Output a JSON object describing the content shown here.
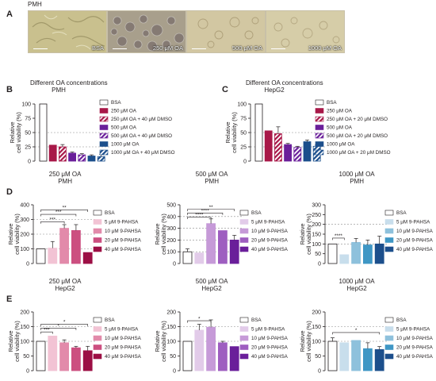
{
  "panels": {
    "A": {
      "letter": "A",
      "cell_type": "PMH",
      "images": [
        {
          "label": "BSA",
          "tone": "#c9c08e"
        },
        {
          "label": "250 μM OA",
          "tone": "#a89f8c"
        },
        {
          "label": "500 μM OA",
          "tone": "#d2c7a2"
        },
        {
          "label": "1000 μM OA",
          "tone": "#d6cda8"
        }
      ]
    }
  },
  "chart_data": [
    {
      "id": "B",
      "letter": "B",
      "type": "bar",
      "title": "Different OA concentrations",
      "subtitle": "PMH",
      "ylabel": "Relative\ncell viability (%)",
      "ylim": [
        0,
        100
      ],
      "yticks": [
        0,
        25,
        50,
        75,
        100
      ],
      "ref_lines": [
        25,
        50
      ],
      "categories": [
        "BSA",
        "250 μM OA",
        "250 μM OA + 40 μM DMSO",
        "500 μM OA",
        "500 μM OA + 40 μM DMSO",
        "1000 μM OA",
        "1000 μM OA + 40 μM DMSO"
      ],
      "values": [
        100,
        28,
        25,
        14,
        11,
        9,
        8
      ],
      "errors": [
        0,
        0,
        4,
        2,
        2,
        2,
        4
      ],
      "colors": [
        "#ffffff",
        "#a81848",
        "#a81848",
        "#6a1f9a",
        "#6a1f9a",
        "#1c4f8c",
        "#1c4f8c"
      ],
      "hatched": [
        false,
        false,
        true,
        false,
        true,
        false,
        true
      ],
      "brackets": []
    },
    {
      "id": "C",
      "letter": "C",
      "type": "bar",
      "title": "Different OA concentrations",
      "subtitle": "HepG2",
      "ylabel": "Relative\ncell viability (%)",
      "ylim": [
        0,
        100
      ],
      "yticks": [
        0,
        25,
        50,
        75,
        100
      ],
      "ref_lines": [
        25,
        50
      ],
      "categories": [
        "BSA",
        "250 μM OA",
        "250 μM OA + 20 μM DMSO",
        "500 μM OA",
        "500 μM OA + 20 μM DMSO",
        "1000 μM OA",
        "1000 μM OA + 20 μM DMSO"
      ],
      "values": [
        100,
        53,
        48,
        29,
        24,
        34,
        26
      ],
      "errors": [
        0,
        0,
        12,
        2,
        2,
        3,
        2
      ],
      "colors": [
        "#ffffff",
        "#a81848",
        "#a81848",
        "#6a1f9a",
        "#6a1f9a",
        "#1c4f8c",
        "#1c4f8c"
      ],
      "hatched": [
        false,
        false,
        true,
        false,
        true,
        false,
        true
      ],
      "brackets": []
    },
    {
      "id": "D1",
      "letter": "D",
      "type": "bar",
      "title": "250 μM OA",
      "subtitle": "PMH",
      "ylabel": "Relative\ncell viability (%)",
      "ylim": [
        0,
        400
      ],
      "yticks": [
        0,
        100,
        200,
        300,
        400
      ],
      "ref_lines": [
        100,
        200,
        300
      ],
      "categories": [
        "BSA",
        "5 μM 9-PAHSA",
        "10 μM 9-PAHSA",
        "20 μM 9-PAHSA",
        "40 μM 9-PAHSA"
      ],
      "values": [
        100,
        105,
        240,
        225,
        75
      ],
      "errors": [
        0,
        45,
        25,
        40,
        0
      ],
      "colors": [
        "#ffffff",
        "#f2c3d4",
        "#e28aaa",
        "#cc4f80",
        "#9c0f45"
      ],
      "hatched": [
        false,
        false,
        false,
        false,
        false
      ],
      "brackets": [
        {
          "from": 0,
          "to": 2,
          "y": 285,
          "label": "***"
        },
        {
          "from": 0,
          "to": 3,
          "y": 335,
          "label": "***"
        },
        {
          "from": 0,
          "to": 4,
          "y": 365,
          "label": "**"
        }
      ]
    },
    {
      "id": "D2",
      "type": "bar",
      "title": "500 μM OA",
      "subtitle": "PMH",
      "ylabel": "Relative\ncell viability (%)",
      "ylim": [
        0,
        500
      ],
      "yticks": [
        0,
        100,
        200,
        300,
        400,
        500
      ],
      "ref_lines": [
        100,
        200,
        300,
        400
      ],
      "categories": [
        "BSA",
        "5 μM 9-PAHSA",
        "10 μM 9-PAHSA",
        "20 μM 9-PAHSA",
        "40 μM 9-PAHSA"
      ],
      "values": [
        100,
        90,
        340,
        280,
        200
      ],
      "errors": [
        25,
        0,
        40,
        0,
        40
      ],
      "colors": [
        "#ffffff",
        "#e2cbe9",
        "#c69ad8",
        "#9e5ec0",
        "#6a1f9a"
      ],
      "hatched": [
        false,
        false,
        false,
        false,
        false
      ],
      "brackets": [
        {
          "from": 0,
          "to": 2,
          "y": 395,
          "label": "****"
        },
        {
          "from": 0,
          "to": 3,
          "y": 430,
          "label": "****"
        },
        {
          "from": 0,
          "to": 4,
          "y": 462,
          "label": "**"
        }
      ]
    },
    {
      "id": "D3",
      "type": "bar",
      "title": "1000 μM OA",
      "subtitle": "PMH",
      "ylabel": "Relative\ncell viability (%)",
      "ylim": [
        0,
        300
      ],
      "yticks": [
        0,
        50,
        100,
        150,
        200,
        250,
        300
      ],
      "ref_lines": [
        100,
        200
      ],
      "categories": [
        "BSA",
        "5 μM 9-PAHSA",
        "10 μM 9-PAHSA",
        "20 μM 9-PAHSA",
        "40 μM 9-PAHSA"
      ],
      "values": [
        100,
        45,
        108,
        95,
        100
      ],
      "errors": [
        0,
        0,
        20,
        25,
        40
      ],
      "colors": [
        "#ffffff",
        "#c8deec",
        "#8ec1dc",
        "#3f97c5",
        "#1c4f8c"
      ],
      "hatched": [
        false,
        false,
        false,
        false,
        false
      ],
      "brackets": [
        {
          "from": 0,
          "to": 1,
          "y": 130,
          "label": "****"
        }
      ]
    },
    {
      "id": "E1",
      "letter": "E",
      "type": "bar",
      "title": "250 μM OA",
      "subtitle": "HepG2",
      "ylabel": "Relative\ncell viability (%)",
      "ylim": [
        0,
        200
      ],
      "yticks": [
        0,
        50,
        100,
        150,
        200
      ],
      "ref_lines": [
        100,
        150
      ],
      "categories": [
        "BSA",
        "5 μM 9-PAHSA",
        "10 μM 9-PAHSA",
        "20 μM 9-PAHSA",
        "40 μM 9-PAHSA"
      ],
      "values": [
        100,
        118,
        95,
        78,
        68
      ],
      "errors": [
        0,
        0,
        10,
        5,
        15
      ],
      "colors": [
        "#ffffff",
        "#f2c3d4",
        "#e28aaa",
        "#cc4f80",
        "#9c0f45"
      ],
      "hatched": [
        false,
        false,
        false,
        false,
        false
      ],
      "brackets": [
        {
          "from": 0,
          "to": 1,
          "y": 132,
          "label": "***"
        },
        {
          "from": 0,
          "to": 3,
          "y": 145,
          "label": "*"
        },
        {
          "from": 0,
          "to": 4,
          "y": 158,
          "label": "*"
        }
      ]
    },
    {
      "id": "E2",
      "type": "bar",
      "title": "500 μM OA",
      "subtitle": "HepG2",
      "ylabel": "Relative\ncell viability (%)",
      "ylim": [
        0,
        200
      ],
      "yticks": [
        0,
        50,
        100,
        150,
        200
      ],
      "ref_lines": [
        100,
        150
      ],
      "categories": [
        "BSA",
        "5 μM 9-PAHSA",
        "10 μM 9-PAHSA",
        "20 μM 9-PAHSA",
        "40 μM 9-PAHSA"
      ],
      "values": [
        100,
        138,
        148,
        95,
        82
      ],
      "errors": [
        0,
        20,
        25,
        5,
        0
      ],
      "colors": [
        "#ffffff",
        "#e2cbe9",
        "#c69ad8",
        "#9e5ec0",
        "#6a1f9a"
      ],
      "hatched": [
        false,
        false,
        false,
        false,
        false
      ],
      "brackets": [
        {
          "from": 0,
          "to": 2,
          "y": 170,
          "label": "*"
        }
      ]
    },
    {
      "id": "E3",
      "type": "bar",
      "title": "1000 μM OA",
      "subtitle": "HepG2",
      "ylabel": "Relative\ncell viability (%)",
      "ylim": [
        0,
        200
      ],
      "yticks": [
        0,
        50,
        100,
        150,
        200
      ],
      "ref_lines": [
        100,
        150
      ],
      "categories": [
        "BSA",
        "5 μM 9-PAHSA",
        "10 μM 9-PAHSA",
        "20 μM 9-PAHSA",
        "40 μM 9-PAHSA"
      ],
      "values": [
        100,
        95,
        103,
        75,
        72
      ],
      "errors": [
        12,
        0,
        0,
        20,
        10
      ],
      "colors": [
        "#ffffff",
        "#c8deec",
        "#8ec1dc",
        "#3f97c5",
        "#1c4f8c"
      ],
      "hatched": [
        false,
        false,
        false,
        false,
        false
      ],
      "brackets": [
        {
          "from": 0,
          "to": 4,
          "y": 130,
          "label": "*"
        }
      ]
    }
  ]
}
